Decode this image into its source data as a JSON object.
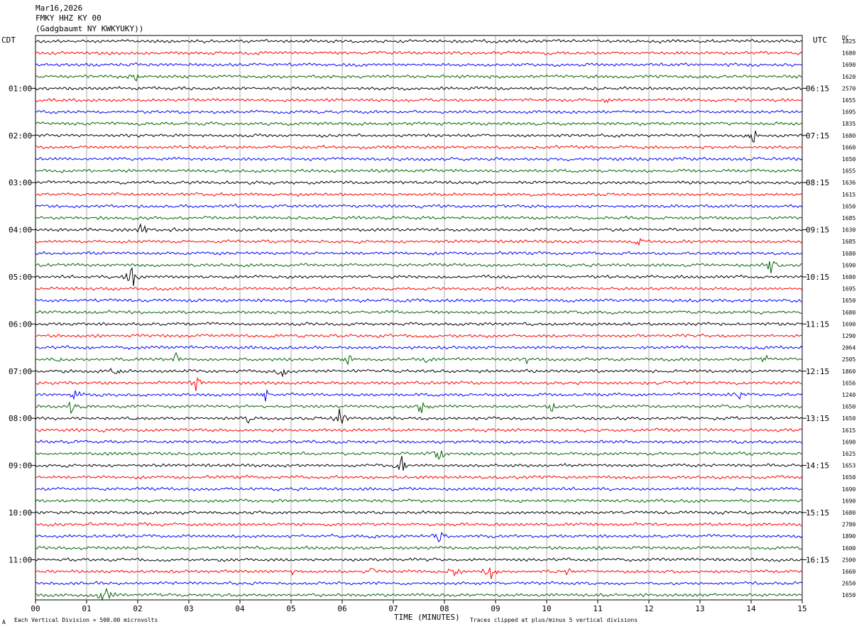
{
  "header": {
    "date": "Mar16,2026",
    "station": "FMKY HHZ KY 00",
    "location": "(Gadgbaumt NY KWKYUKY))"
  },
  "left_axis_label": "CDT",
  "right_axis_label": "UTC",
  "dc_label": "DC",
  "footer": {
    "scale_note": "Each Vertical Division = 500.00 microvolts",
    "clip_note": "Traces clipped at plus/minus 5 vertical divisions",
    "corner_mark": "A"
  },
  "chart_data": {
    "type": "line",
    "title": "",
    "xlabel": "TIME (MINUTES)",
    "ylabel": "",
    "xlim": [
      0,
      15
    ],
    "x_ticks": [
      "00",
      "01",
      "02",
      "03",
      "04",
      "05",
      "06",
      "07",
      "08",
      "09",
      "10",
      "11",
      "12",
      "13",
      "14",
      "15"
    ],
    "grid": true,
    "trace_count": 48,
    "trace_minutes": 15,
    "trace_colors": [
      "#000000",
      "#ff0000",
      "#0000ff",
      "#006400"
    ],
    "left_time_labels": [
      {
        "trace": 4,
        "label": "01:00"
      },
      {
        "trace": 8,
        "label": "02:00"
      },
      {
        "trace": 12,
        "label": "03:00"
      },
      {
        "trace": 16,
        "label": "04:00"
      },
      {
        "trace": 20,
        "label": "05:00"
      },
      {
        "trace": 24,
        "label": "06:00"
      },
      {
        "trace": 28,
        "label": "07:00"
      },
      {
        "trace": 32,
        "label": "08:00"
      },
      {
        "trace": 36,
        "label": "09:00"
      },
      {
        "trace": 40,
        "label": "10:00"
      },
      {
        "trace": 44,
        "label": "11:00"
      }
    ],
    "right_time_labels": [
      {
        "trace": 4,
        "label": "06:15"
      },
      {
        "trace": 8,
        "label": "07:15"
      },
      {
        "trace": 12,
        "label": "08:15"
      },
      {
        "trace": 16,
        "label": "09:15"
      },
      {
        "trace": 20,
        "label": "10:15"
      },
      {
        "trace": 24,
        "label": "11:15"
      },
      {
        "trace": 28,
        "label": "12:15"
      },
      {
        "trace": 32,
        "label": "13:15"
      },
      {
        "trace": 36,
        "label": "14:15"
      },
      {
        "trace": 40,
        "label": "15:15"
      },
      {
        "trace": 44,
        "label": "16:15"
      }
    ],
    "dc_offsets": [
      "1825",
      "1680",
      "1690",
      "1620",
      "2570",
      "1655",
      "1695",
      "1835",
      "1680",
      "1660",
      "1650",
      "1655",
      "1636",
      "1615",
      "1650",
      "1685",
      "1630",
      "1685",
      "1680",
      "1690",
      "1680",
      "1695",
      "1650",
      "1680",
      "1690",
      "1290",
      "2064",
      "2505",
      "1860",
      "1656",
      "1240",
      "1650",
      "1650",
      "1615",
      "1690",
      "1625",
      "1653",
      "1650",
      "1690",
      "1690",
      "1680",
      "2780",
      "1890",
      "1600",
      "2500",
      "1660",
      "2650",
      "1650"
    ],
    "events": [
      {
        "trace": 3,
        "minute": 1.95,
        "amp": 2.0
      },
      {
        "trace": 5,
        "minute": 11.15,
        "amp": 1.4
      },
      {
        "trace": 8,
        "minute": 14.05,
        "amp": 2.2
      },
      {
        "trace": 16,
        "minute": 2.1,
        "amp": 2.5
      },
      {
        "trace": 16,
        "minute": 2.65,
        "amp": 1.6
      },
      {
        "trace": 17,
        "minute": 11.8,
        "amp": 1.4
      },
      {
        "trace": 19,
        "minute": 14.4,
        "amp": 3.0
      },
      {
        "trace": 20,
        "minute": 1.9,
        "amp": 4.0
      },
      {
        "trace": 27,
        "minute": 0.45,
        "amp": 1.0
      },
      {
        "trace": 27,
        "minute": 2.75,
        "amp": 2.0
      },
      {
        "trace": 27,
        "minute": 6.1,
        "amp": 2.2
      },
      {
        "trace": 27,
        "minute": 7.7,
        "amp": 1.4
      },
      {
        "trace": 27,
        "minute": 9.6,
        "amp": 1.2
      },
      {
        "trace": 27,
        "minute": 14.3,
        "amp": 1.4
      },
      {
        "trace": 28,
        "minute": 1.55,
        "amp": 1.4
      },
      {
        "trace": 28,
        "minute": 4.8,
        "amp": 2.5
      },
      {
        "trace": 29,
        "minute": 3.15,
        "amp": 2.6
      },
      {
        "trace": 30,
        "minute": 0.75,
        "amp": 1.8
      },
      {
        "trace": 30,
        "minute": 4.5,
        "amp": 1.8
      },
      {
        "trace": 30,
        "minute": 13.8,
        "amp": 2.0
      },
      {
        "trace": 31,
        "minute": 0.7,
        "amp": 1.8
      },
      {
        "trace": 31,
        "minute": 7.55,
        "amp": 2.4
      },
      {
        "trace": 31,
        "minute": 10.1,
        "amp": 1.8
      },
      {
        "trace": 32,
        "minute": 1.9,
        "amp": 1.2
      },
      {
        "trace": 32,
        "minute": 4.1,
        "amp": 2.2
      },
      {
        "trace": 32,
        "minute": 5.95,
        "amp": 3.2
      },
      {
        "trace": 35,
        "minute": 7.9,
        "amp": 2.8
      },
      {
        "trace": 36,
        "minute": 7.15,
        "amp": 3.6
      },
      {
        "trace": 42,
        "minute": 7.9,
        "amp": 2.2
      },
      {
        "trace": 45,
        "minute": 6.5,
        "amp": 3.2
      },
      {
        "trace": 45,
        "minute": 8.2,
        "amp": 2.8
      },
      {
        "trace": 45,
        "minute": 8.9,
        "amp": 2.8
      },
      {
        "trace": 45,
        "minute": 10.4,
        "amp": 1.8
      },
      {
        "trace": 45,
        "minute": 5.0,
        "amp": 1.2
      },
      {
        "trace": 47,
        "minute": 1.35,
        "amp": 4.0
      }
    ]
  }
}
